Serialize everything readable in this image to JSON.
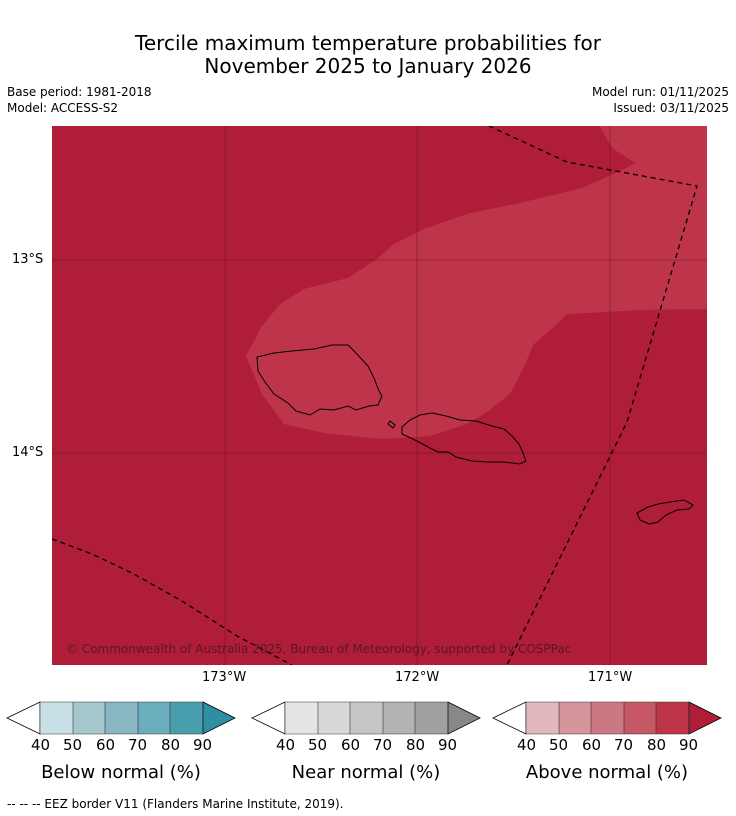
{
  "title": {
    "line1": "Tercile maximum temperature probabilities for",
    "line2": "November 2025 to January 2026"
  },
  "meta": {
    "base_period": "Base period: 1981-2018",
    "model": "Model: ACCESS-S2",
    "model_run": "Model run: 01/11/2025",
    "issued": "Issued: 03/11/2025"
  },
  "map": {
    "lat_labels": [
      "13°S",
      "14°S"
    ],
    "lon_labels": [
      "173°W",
      "172°W",
      "171°W"
    ],
    "copyright": "© Commonwealth of Australia 2025, Bureau of Meteorology, supported by COSPPac",
    "colors": {
      "above_80_90": "#B01D38",
      "above_70_80": "#BE354A"
    }
  },
  "colorbars": [
    {
      "title": "Below normal (%)",
      "ticks": [
        "40",
        "50",
        "60",
        "70",
        "80",
        "90"
      ],
      "colors": [
        "#C7E0E6",
        "#A6C7CE",
        "#88B6C3",
        "#6AAEBE",
        "#4A9FAF",
        "#2E8FA3"
      ]
    },
    {
      "title": "Near normal (%)",
      "ticks": [
        "40",
        "50",
        "60",
        "70",
        "80",
        "90"
      ],
      "colors": [
        "#E4E4E4",
        "#D8D8D8",
        "#C6C6C6",
        "#B3B3B3",
        "#A0A0A0",
        "#888888"
      ]
    },
    {
      "title": "Above normal (%)",
      "ticks": [
        "40",
        "50",
        "60",
        "70",
        "80",
        "90"
      ],
      "colors": [
        "#E2B7BE",
        "#D5959D",
        "#CC7882",
        "#C65765",
        "#BE354A",
        "#B01D38"
      ]
    }
  ],
  "footer": "-- -- -- EEZ border V11 (Flanders Marine Institute, 2019)."
}
